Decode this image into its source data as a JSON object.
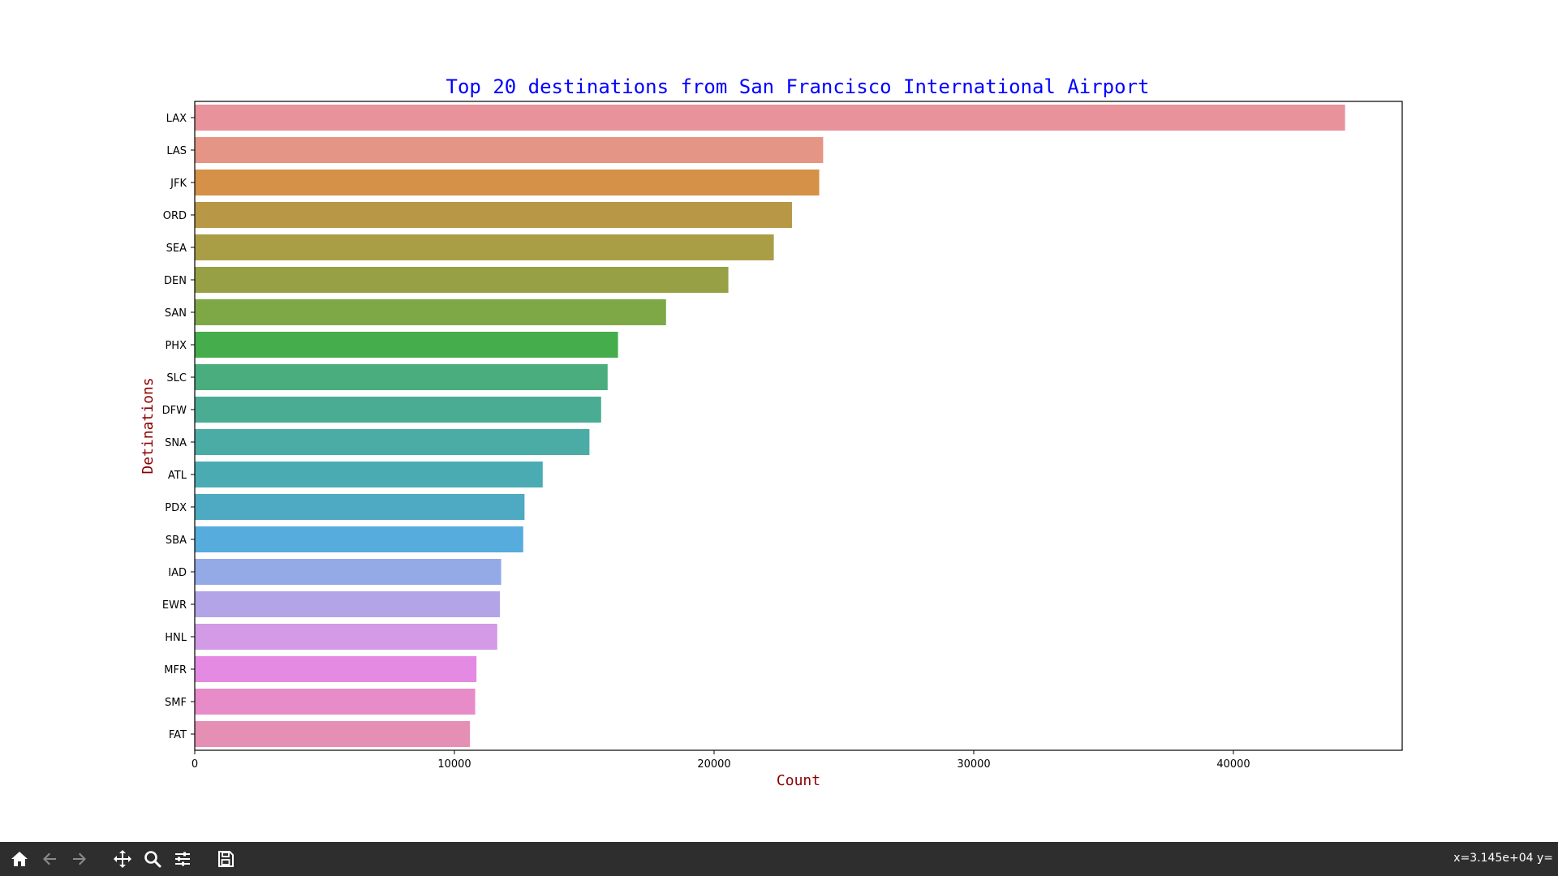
{
  "chart_data": {
    "type": "bar",
    "orientation": "horizontal",
    "title": "Top 20 destinations from San Francisco International Airport",
    "xlabel": "Count",
    "ylabel": "Detinations",
    "xlim": [
      0,
      46500
    ],
    "xticks": [
      0,
      10000,
      20000,
      30000,
      40000
    ],
    "xtick_labels": [
      "0",
      "10000",
      "20000",
      "30000",
      "40000"
    ],
    "categories": [
      "LAX",
      "LAS",
      "JFK",
      "ORD",
      "SEA",
      "DEN",
      "SAN",
      "PHX",
      "SLC",
      "DFW",
      "SNA",
      "ATL",
      "PDX",
      "SBA",
      "IAD",
      "EWR",
      "HNL",
      "MFR",
      "SMF",
      "FAT"
    ],
    "values": [
      44300,
      24200,
      24050,
      23000,
      22300,
      20550,
      18150,
      16300,
      15900,
      15650,
      15200,
      13400,
      12700,
      12650,
      11800,
      11750,
      11650,
      10850,
      10800,
      10600
    ],
    "colors": [
      "#e8929c",
      "#e59585",
      "#d59147",
      "#b89846",
      "#a99e45",
      "#98a045",
      "#7ea846",
      "#45ad4c",
      "#49ad7e",
      "#4aad93",
      "#4aaca5",
      "#4aacb2",
      "#4eaac2",
      "#56acdc",
      "#93aae6",
      "#b3a4e8",
      "#d39ae6",
      "#e58ae2",
      "#e78cc9",
      "#e68fb5"
    ],
    "title_color": "#0000ff",
    "label_color": "#8b0000",
    "grid": false,
    "legend": "none"
  },
  "toolbar": {
    "icons": [
      "home-icon",
      "back-icon",
      "forward-icon",
      "pan-icon",
      "zoom-icon",
      "configure-icon",
      "save-icon"
    ],
    "coords_text": "x=3.145e+04 y="
  }
}
